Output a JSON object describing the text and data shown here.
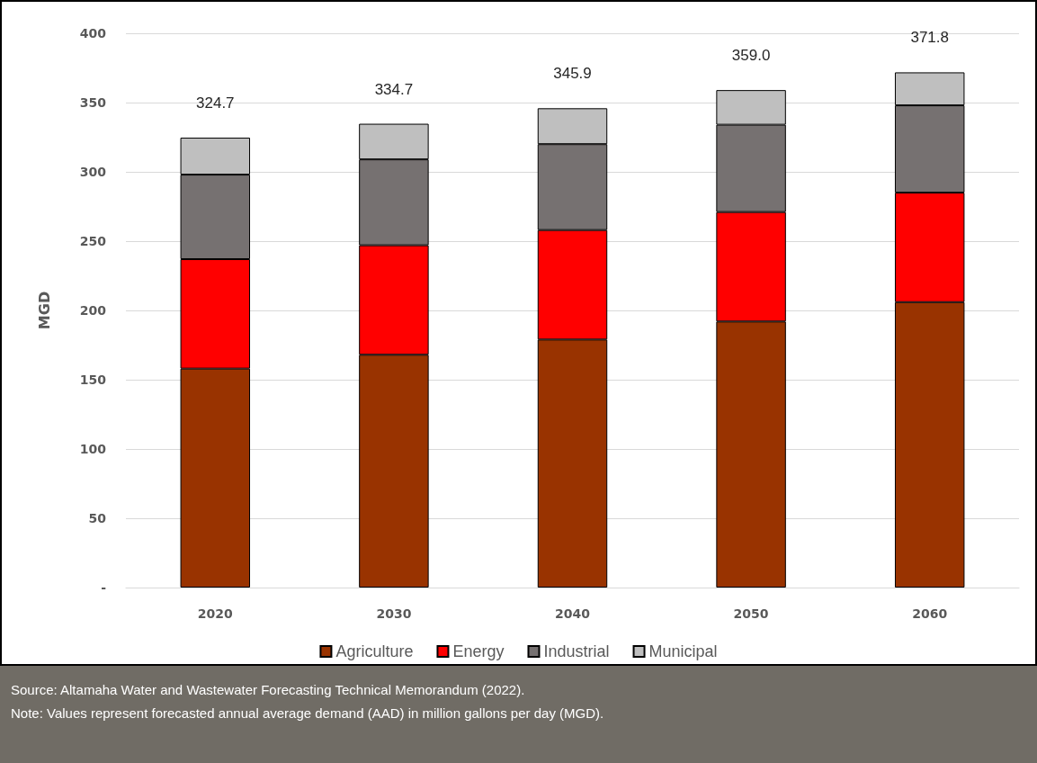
{
  "chart_data": {
    "type": "bar",
    "ylabel": "MGD",
    "categories": [
      "2020",
      "2030",
      "2040",
      "2050",
      "2060"
    ],
    "stacked": true,
    "series": [
      {
        "name": "Agriculture",
        "color": "#993300",
        "values": [
          158,
          168,
          179,
          192,
          206
        ]
      },
      {
        "name": "Energy",
        "color": "#ff0000",
        "values": [
          79,
          79,
          79,
          79,
          79
        ]
      },
      {
        "name": "Industrial",
        "color": "#767171",
        "values": [
          61,
          62,
          62,
          63,
          63
        ]
      },
      {
        "name": "Municipal",
        "color": "#bfbfbf",
        "values": [
          26.7,
          25.7,
          25.9,
          25,
          23.8
        ]
      }
    ],
    "ylim": [
      0,
      400
    ],
    "yticks": [
      {
        "value": 0,
        "label": "-"
      },
      50,
      100,
      150,
      200,
      250,
      300,
      350,
      400
    ],
    "grid": "y",
    "legend": "bottom",
    "totals": [
      "324.7",
      "334.7",
      "345.9",
      "359.0",
      "371.8"
    ],
    "annotations": [
      "Source: Altamaha Water and Wastewater Forecasting Technical Memorandum (2022).",
      "Note: Values represent forecasted annual average demand (AAD) in million gallons per day (MGD)."
    ]
  }
}
